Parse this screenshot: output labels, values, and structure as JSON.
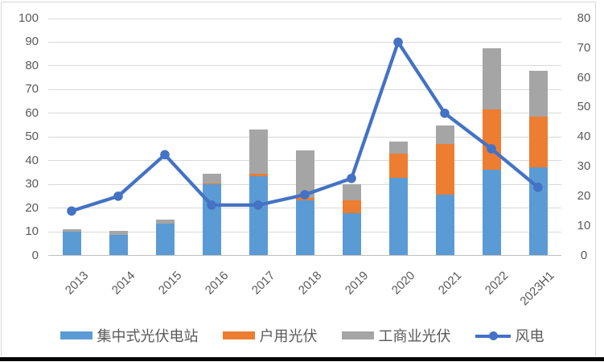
{
  "chart_data": {
    "type": "combo-stacked-bar-line",
    "title": "",
    "categories": [
      "2013",
      "2014",
      "2015",
      "2016",
      "2017",
      "2018",
      "2019",
      "2020",
      "2021",
      "2022",
      "2023H1"
    ],
    "bar_series": [
      {
        "name": "集中式光伏电站",
        "color": "#5b9bd5",
        "axis": "left",
        "values": [
          10,
          8.5,
          13.5,
          30,
          33.5,
          23.4,
          17.9,
          32.6,
          25.6,
          36.2,
          37.1
        ]
      },
      {
        "name": "户用光伏",
        "color": "#ed7d31",
        "axis": "left",
        "values": [
          0,
          0,
          0,
          0.4,
          0.8,
          1.0,
          5.3,
          10.2,
          21.4,
          25.4,
          21.5
        ]
      },
      {
        "name": "工商业光伏",
        "color": "#a5a5a5",
        "axis": "left",
        "values": [
          1,
          2,
          1.5,
          4,
          18.7,
          20,
          6.9,
          5.3,
          7.7,
          25.7,
          19.3
        ]
      }
    ],
    "line_series": [
      {
        "name": "风电",
        "color": "#4472c4",
        "axis": "right",
        "values": [
          15,
          20,
          34,
          17,
          17,
          20.5,
          26,
          72,
          48,
          36,
          23
        ]
      }
    ],
    "left_axis": {
      "min": 0,
      "max": 100,
      "step": 10,
      "ticks": [
        "0",
        "10",
        "20",
        "30",
        "40",
        "50",
        "60",
        "70",
        "80",
        "90",
        "100"
      ]
    },
    "right_axis": {
      "min": 0,
      "max": 80,
      "step": 10,
      "ticks": [
        "0",
        "10",
        "20",
        "30",
        "40",
        "50",
        "60",
        "70",
        "80"
      ]
    },
    "grid": true,
    "legend_position": "bottom",
    "colors": {
      "gridline": "#d9d9d9",
      "axis_line": "#bfbfbf",
      "tick_text": "#595959",
      "frame": "#d9d9d9"
    }
  }
}
